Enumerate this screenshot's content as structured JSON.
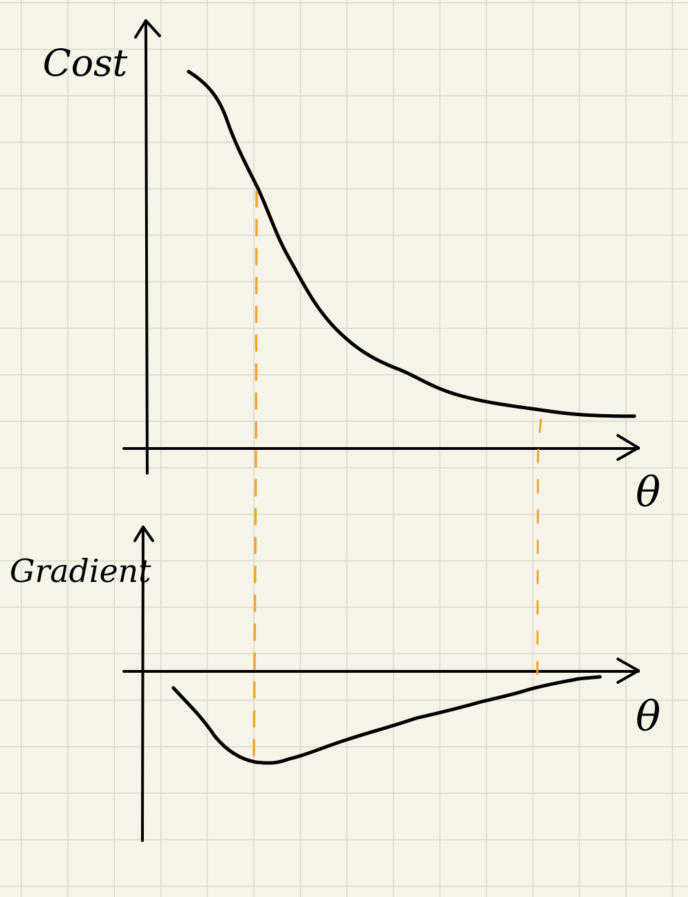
{
  "labels": {
    "top_y_axis": "Cost",
    "top_x_axis": "θ",
    "bottom_y_axis": "Gradient",
    "bottom_x_axis": "θ"
  },
  "colors": {
    "paper": "#f6f4e8",
    "grid": "#d9d8c9",
    "ink": "#000000",
    "guide": "#f0a433"
  }
}
